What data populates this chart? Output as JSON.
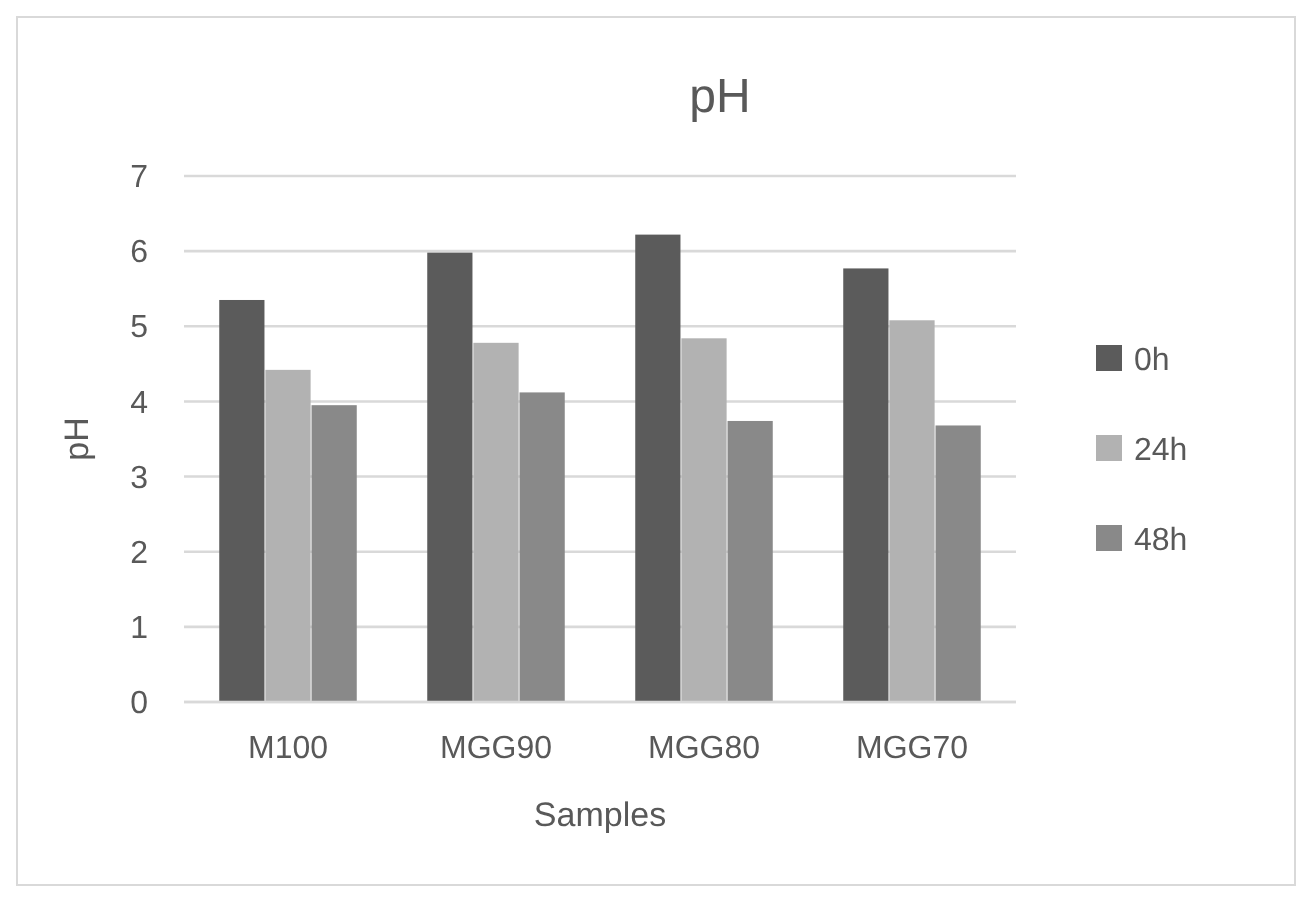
{
  "chart_data": {
    "type": "bar",
    "title": "pH",
    "xlabel": "Samples",
    "ylabel": "pH",
    "categories": [
      "M100",
      "MGG90",
      "MGG80",
      "MGG70"
    ],
    "series": [
      {
        "name": "0h",
        "color": "#5b5b5b",
        "values": [
          5.35,
          5.98,
          6.22,
          5.77
        ]
      },
      {
        "name": "24h",
        "color": "#b2b2b2",
        "values": [
          4.42,
          4.78,
          4.84,
          5.08
        ]
      },
      {
        "name": "48h",
        "color": "#898989",
        "values": [
          3.95,
          4.12,
          3.74,
          3.68
        ]
      }
    ],
    "ylim": [
      0,
      7
    ],
    "yticks": [
      0,
      1,
      2,
      3,
      4,
      5,
      6,
      7
    ],
    "grid": "y",
    "legend": "right"
  }
}
